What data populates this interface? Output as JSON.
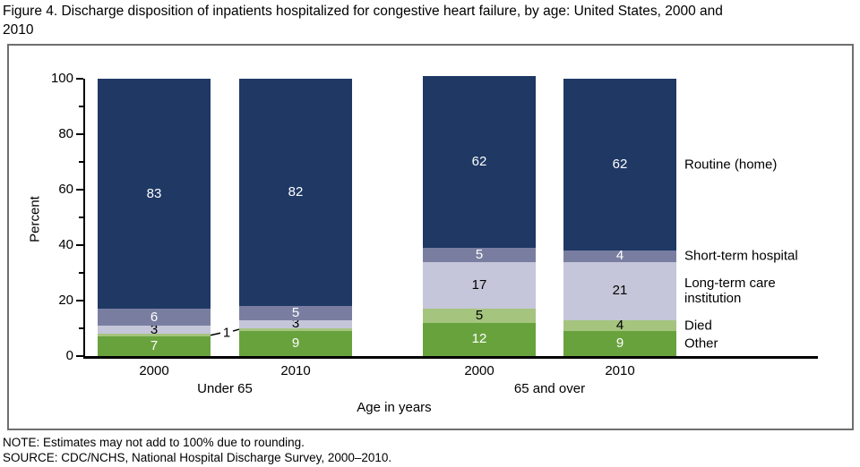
{
  "figure": {
    "title": "Figure 4. Discharge disposition of inpatients hospitalized for congestive heart failure, by age: United States, 2000 and\n2010",
    "note": "NOTE: Estimates may not add to 100% due to rounding.",
    "source": "SOURCE: CDC/NCHS, National Hospital Discharge Survey, 2000–2010."
  },
  "chart_data": {
    "type": "bar",
    "stacked": true,
    "stack_order": "bottom-to-top",
    "title": "",
    "xlabel": "Age in years",
    "ylabel": "Percent",
    "ylim": [
      0,
      100
    ],
    "yticks_major": [
      0,
      20,
      40,
      60,
      80,
      100
    ],
    "yticks_minor": [
      10,
      30,
      50,
      70,
      90
    ],
    "grid": false,
    "legend_position": "right-of-last-bar",
    "categories": [
      "2000",
      "2010",
      "2000",
      "2010"
    ],
    "group_labels": [
      "Under 65",
      "65 and over"
    ],
    "series": [
      {
        "name": "Other",
        "legend": "Other",
        "color": "#68a23d",
        "label_color": "#ffffff",
        "values": [
          7,
          9,
          12,
          9
        ]
      },
      {
        "name": "Died",
        "legend": "Died",
        "color": "#a5c47e",
        "label_color": "#000000",
        "values": [
          1,
          1,
          5,
          4
        ]
      },
      {
        "name": "Long-term care institution",
        "legend": "Long-term care\n institution",
        "color": "#c5c6d9",
        "label_color": "#000000",
        "values": [
          3,
          3,
          17,
          21
        ]
      },
      {
        "name": "Short-term hospital",
        "legend": "Short-term hospital",
        "color": "#797ea1",
        "label_color": "#ffffff",
        "values": [
          6,
          5,
          5,
          4
        ]
      },
      {
        "name": "Routine (home)",
        "legend": "Routine (home)",
        "color": "#1f3864",
        "label_color": "#ffffff",
        "values": [
          83,
          82,
          62,
          62
        ]
      }
    ],
    "annotations": [
      {
        "text": "1",
        "refers_to": "Died segments of the Under 65 bars (2000 and 2010)"
      }
    ],
    "axis_color": "#000000"
  }
}
